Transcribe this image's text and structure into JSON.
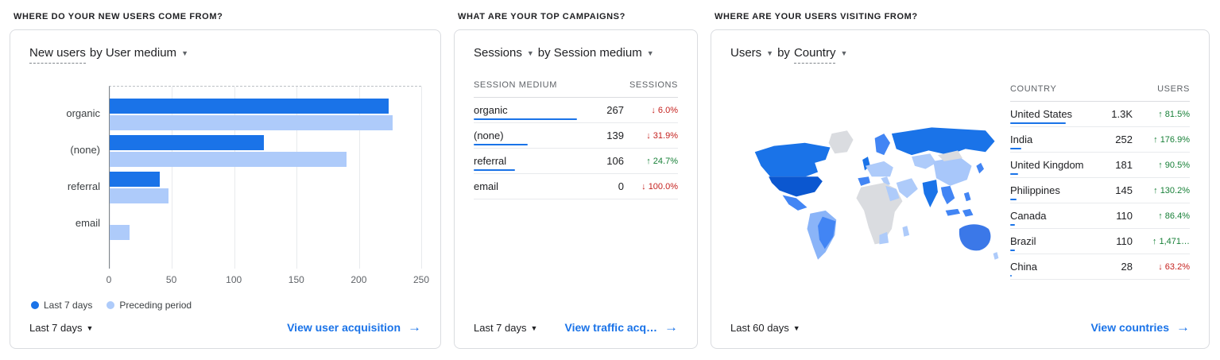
{
  "icons": {
    "dropdown_caret": "▼",
    "link_arrow": "→"
  },
  "colors": {
    "primary_blue": "#1a73e8",
    "preceding_blue": "#aecbfa",
    "link_blue": "#1a73e8",
    "up_green": "#188038",
    "down_red": "#c5221f",
    "border": "#dadce0",
    "text_dark": "#202124",
    "text_gray": "#5f6368"
  },
  "map_palette": {
    "highest": "#0b57d0",
    "high": "#1a73e8",
    "medium": "#4285f4",
    "low": "#aecbfa",
    "none": "#dadce0"
  },
  "cards": {
    "acquisition": {
      "question": "WHERE DO YOUR NEW USERS COME FROM?",
      "title": {
        "metric": "New users",
        "by": "by User medium"
      },
      "chart_data": {
        "type": "bar",
        "orientation": "horizontal",
        "title": "New users by User medium",
        "categories": [
          "organic",
          "(none)",
          "referral",
          "email"
        ],
        "series": [
          {
            "name": "Last 7 days",
            "color": "#1a73e8",
            "values": [
              224,
              124,
              40,
              0
            ]
          },
          {
            "name": "Preceding period",
            "color": "#aecbfa",
            "values": [
              227,
              190,
              47,
              16
            ]
          }
        ],
        "x_ticks": [
          0,
          50,
          100,
          150,
          200,
          250
        ],
        "xlim": [
          0,
          250
        ],
        "grid": "vertical",
        "legend_position": "bottom"
      },
      "legend": [
        {
          "label": "Last 7 days"
        },
        {
          "label": "Preceding period"
        }
      ],
      "footer": {
        "range": "Last 7 days",
        "link": "View user acquisition"
      }
    },
    "campaigns": {
      "question": "WHAT ARE YOUR TOP CAMPAIGNS?",
      "title": {
        "metric": "Sessions",
        "by": "by Session medium"
      },
      "table": {
        "dimension_header": "SESSION MEDIUM",
        "metric_header": "SESSIONS",
        "max_value": 267,
        "rows": [
          {
            "dimension": "organic",
            "value": "267",
            "value_num": 267,
            "direction": "down",
            "arrow": "↓",
            "change": "6.0%"
          },
          {
            "dimension": "(none)",
            "value": "139",
            "value_num": 139,
            "direction": "down",
            "arrow": "↓",
            "change": "31.9%"
          },
          {
            "dimension": "referral",
            "value": "106",
            "value_num": 106,
            "direction": "up",
            "arrow": "↑",
            "change": "24.7%"
          },
          {
            "dimension": "email",
            "value": "0",
            "value_num": 0,
            "direction": "down",
            "arrow": "↓",
            "change": "100.0%"
          }
        ]
      },
      "footer": {
        "range": "Last 7 days",
        "link": "View traffic acq…"
      }
    },
    "countries": {
      "question": "WHERE ARE YOUR USERS VISITING FROM?",
      "title": {
        "metric": "Users",
        "by_prefix": "by",
        "dimension": "Country"
      },
      "table": {
        "dimension_header": "COUNTRY",
        "metric_header": "USERS",
        "max_value": 1300,
        "rows": [
          {
            "dimension": "United States",
            "value": "1.3K",
            "value_num": 1300,
            "direction": "up",
            "arrow": "↑",
            "change": "81.5%"
          },
          {
            "dimension": "India",
            "value": "252",
            "value_num": 252,
            "direction": "up",
            "arrow": "↑",
            "change": "176.9%"
          },
          {
            "dimension": "United Kingdom",
            "value": "181",
            "value_num": 181,
            "direction": "up",
            "arrow": "↑",
            "change": "90.5%"
          },
          {
            "dimension": "Philippines",
            "value": "145",
            "value_num": 145,
            "direction": "up",
            "arrow": "↑",
            "change": "130.2%"
          },
          {
            "dimension": "Canada",
            "value": "110",
            "value_num": 110,
            "direction": "up",
            "arrow": "↑",
            "change": "86.4%"
          },
          {
            "dimension": "Brazil",
            "value": "110",
            "value_num": 110,
            "direction": "up",
            "arrow": "↑",
            "change": "1,471…"
          },
          {
            "dimension": "China",
            "value": "28",
            "value_num": 28,
            "direction": "down",
            "arrow": "↓",
            "change": "63.2%"
          }
        ]
      },
      "footer": {
        "range": "Last 60 days",
        "link": "View countries"
      }
    }
  }
}
